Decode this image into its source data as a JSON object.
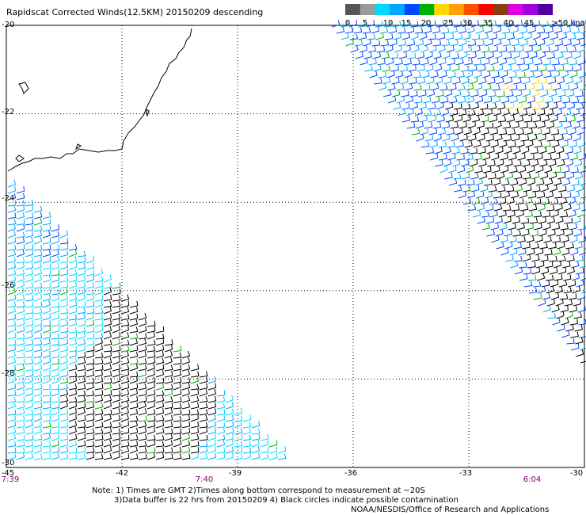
{
  "title": "Rapidscat Corrected Winds(12.5KM) 20150209 descending",
  "colorbar": {
    "labels": [
      "0",
      "5",
      "10",
      "15",
      "20",
      "25",
      "30",
      "35",
      "40",
      "45",
      ">50 knots"
    ],
    "colors": [
      "#555555",
      "#9a9a9a",
      "#00d8ff",
      "#00a8ff",
      "#0048ff",
      "#00b000",
      "#ffd800",
      "#ffa000",
      "#ff5000",
      "#ff0000",
      "#8c3c14",
      "#e000e0",
      "#a000e0",
      "#5000a0"
    ]
  },
  "y_axis_labels": [
    "-20",
    "-22",
    "-24",
    "-26",
    "-28",
    "-30"
  ],
  "x_axis_labels": [
    "-45",
    "-42",
    "-39",
    "-36",
    "-33",
    "-30"
  ],
  "time_labels": [
    "7:39",
    "7:40",
    "6:04"
  ],
  "notes": [
    "Note: 1) Times are GMT 2)Times along bottom correspond to measurement at ~20S",
    "3)Data buffer is 22 hrs from 20150209 4) Black circles indicate possible contamination",
    "NOAA/NESDIS/Office of Research and Applications"
  ],
  "chart_data": {
    "type": "map-wind-barbs",
    "lon_range": [
      -45,
      -30
    ],
    "lat_range": [
      -30,
      -20
    ],
    "grid": true,
    "units": "knots",
    "swaths": [
      {
        "lon_range": [
          -45,
          -37.5
        ],
        "lat_range": [
          -30,
          -24
        ]
      },
      {
        "lon_range": [
          -37.0,
          -30
        ],
        "lat_range": [
          -28.0,
          -20
        ]
      }
    ]
  }
}
